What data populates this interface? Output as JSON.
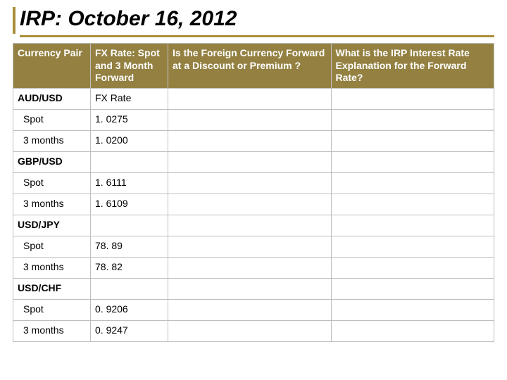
{
  "title": "IRP: October 16, 2012",
  "table": {
    "headers": [
      "Currency Pair",
      "FX Rate: Spot and 3 Month Forward",
      "Is the Foreign Currency Forward at a Discount or Premium ?",
      "What is the IRP Interest Rate Explanation for the Forward Rate?"
    ],
    "col_widths": [
      "110px",
      "110px",
      "auto",
      "auto"
    ],
    "header_bg": "#948142",
    "header_fg": "#ffffff",
    "border_color": "#bfbfbf",
    "accent_color": "#a98f3a",
    "rows": [
      {
        "type": "pair",
        "col0": "AUD/USD",
        "col1": "FX Rate",
        "col2": "",
        "col3": ""
      },
      {
        "type": "indent",
        "col0": "Spot",
        "col1": "1. 0275",
        "col2": "",
        "col3": ""
      },
      {
        "type": "indent",
        "col0": "3 months",
        "col1": "1. 0200",
        "col2": "",
        "col3": ""
      },
      {
        "type": "pair",
        "col0": "GBP/USD",
        "col1": "",
        "col2": "",
        "col3": ""
      },
      {
        "type": "indent",
        "col0": "Spot",
        "col1": "1. 6111",
        "col2": "",
        "col3": ""
      },
      {
        "type": "indent",
        "col0": "3 months",
        "col1": "1. 6109",
        "col2": "",
        "col3": ""
      },
      {
        "type": "pair",
        "col0": "USD/JPY",
        "col1": "",
        "col2": "",
        "col3": ""
      },
      {
        "type": "indent",
        "col0": "Spot",
        "col1": "78. 89",
        "col2": "",
        "col3": ""
      },
      {
        "type": "indent",
        "col0": "3 months",
        "col1": "78. 82",
        "col2": "",
        "col3": ""
      },
      {
        "type": "pair",
        "col0": "USD/CHF",
        "col1": "",
        "col2": "",
        "col3": ""
      },
      {
        "type": "indent",
        "col0": "Spot",
        "col1": "0. 9206",
        "col2": "",
        "col3": ""
      },
      {
        "type": "indent",
        "col0": "3 months",
        "col1": "0. 9247",
        "col2": "",
        "col3": ""
      }
    ]
  }
}
